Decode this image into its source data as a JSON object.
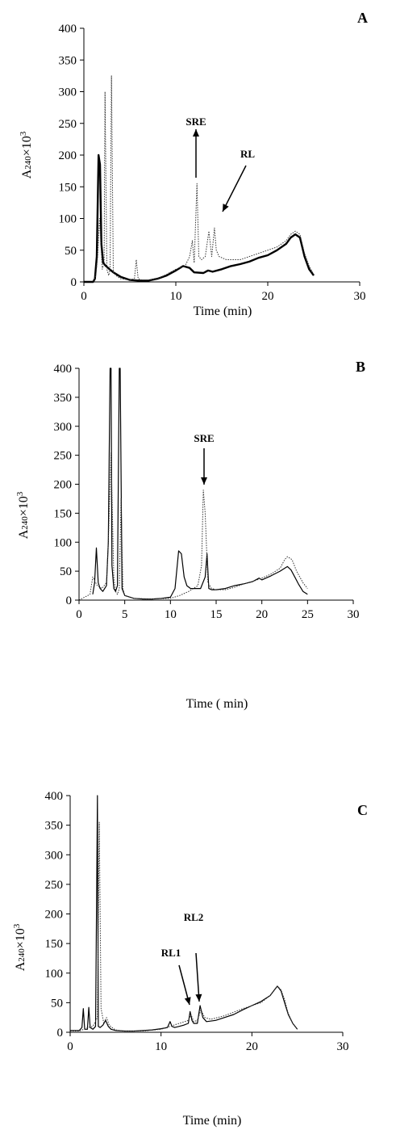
{
  "chart_data": [
    {
      "type": "line",
      "panel_label": "A",
      "xlabel": "Time (min)",
      "ylabel_main": "A",
      "ylabel_sub": "240",
      "ylabel_mid": "×10",
      "ylabel_sup": "3",
      "xlim": [
        0,
        30
      ],
      "ylim": [
        0,
        400
      ],
      "xticks": [
        0,
        10,
        20,
        30
      ],
      "yticks": [
        0,
        50,
        100,
        150,
        200,
        250,
        300,
        350,
        400
      ],
      "grid": false,
      "legend": "none",
      "annotations": [
        {
          "text": "SRE",
          "x": 12.3,
          "y": 160
        },
        {
          "text": "RL",
          "x": 14.5,
          "y": 90
        }
      ],
      "series": [
        {
          "style": "solid-thick",
          "x": [
            0,
            1.0,
            1.2,
            1.4,
            1.6,
            1.75,
            1.9,
            2.1,
            2.4,
            2.8,
            3.2,
            4,
            5,
            6,
            7,
            8,
            9,
            10,
            10.8,
            11.5,
            12,
            13,
            13.5,
            14,
            15,
            16,
            17,
            18,
            19,
            20,
            21,
            22,
            22.5,
            23,
            23.5,
            24,
            24.5,
            25
          ],
          "y": [
            0,
            0,
            5,
            40,
            200,
            185,
            60,
            30,
            25,
            20,
            15,
            8,
            3,
            2,
            2,
            5,
            10,
            18,
            25,
            22,
            15,
            14,
            18,
            16,
            20,
            25,
            28,
            32,
            38,
            42,
            50,
            60,
            70,
            75,
            70,
            40,
            20,
            10
          ]
        },
        {
          "style": "dotted",
          "x": [
            0,
            1.0,
            1.3,
            1.5,
            1.7,
            2.0,
            2.2,
            2.3,
            2.5,
            2.7,
            2.85,
            3.0,
            3.2,
            3.5,
            4,
            5,
            5.5,
            5.7,
            5.9,
            6.3,
            7,
            8,
            9,
            10,
            11,
            11.5,
            11.8,
            12.0,
            12.3,
            12.5,
            12.8,
            13.2,
            13.6,
            13.9,
            14.2,
            14.4,
            14.7,
            15.5,
            17,
            18,
            19,
            20,
            21,
            22,
            22.5,
            23,
            23.5,
            24,
            24.5,
            25
          ],
          "y": [
            0,
            0,
            10,
            40,
            100,
            20,
            30,
            300,
            20,
            10,
            20,
            325,
            15,
            10,
            5,
            3,
            5,
            35,
            5,
            3,
            3,
            5,
            12,
            20,
            25,
            40,
            65,
            30,
            155,
            40,
            35,
            40,
            80,
            40,
            85,
            50,
            40,
            35,
            35,
            40,
            45,
            50,
            55,
            65,
            75,
            80,
            75,
            45,
            25,
            12
          ]
        }
      ]
    },
    {
      "type": "line",
      "panel_label": "B",
      "xlabel": "Time ( min)",
      "ylabel_main": "A",
      "ylabel_sub": "240",
      "ylabel_mid": "×10",
      "ylabel_sup": "3",
      "xlim": [
        0,
        30
      ],
      "ylim": [
        0,
        400
      ],
      "xticks": [
        0,
        5,
        10,
        15,
        20,
        25,
        30
      ],
      "yticks": [
        0,
        50,
        100,
        150,
        200,
        250,
        300,
        350,
        400
      ],
      "grid": false,
      "legend": "none",
      "annotations": [
        {
          "text": "SRE",
          "x": 13.7,
          "y": 200
        }
      ],
      "series": [
        {
          "style": "solid",
          "x": [
            1.5,
            1.7,
            1.9,
            2.1,
            2.3,
            2.6,
            3.0,
            3.2,
            3.4,
            3.5,
            3.6,
            3.8,
            4.0,
            4.2,
            4.4,
            4.5,
            4.7,
            5,
            6,
            7,
            8,
            9,
            10,
            10.5,
            10.9,
            11.2,
            11.5,
            11.8,
            12.2,
            12.8,
            13.3,
            13.8,
            14.0,
            14.2,
            14.5,
            15,
            16,
            17,
            18,
            19,
            19.7,
            20,
            21,
            22,
            22.5,
            22.8,
            23.2,
            23.6,
            24,
            24.5,
            25
          ],
          "y": [
            10,
            30,
            90,
            30,
            20,
            15,
            25,
            100,
            400,
            400,
            60,
            20,
            15,
            25,
            400,
            400,
            20,
            8,
            3,
            2,
            2,
            3,
            5,
            20,
            85,
            80,
            40,
            25,
            20,
            20,
            20,
            40,
            80,
            20,
            18,
            18,
            20,
            25,
            28,
            32,
            38,
            35,
            42,
            50,
            55,
            58,
            52,
            40,
            28,
            15,
            10
          ]
        },
        {
          "style": "dotted",
          "x": [
            0,
            1.2,
            1.5,
            2.0,
            2.5,
            3.0,
            3.2,
            3.5,
            3.8,
            4.0,
            4.2,
            4.4,
            4.6,
            4.8,
            5,
            6,
            8,
            10,
            11,
            12,
            13,
            13.4,
            13.6,
            13.8,
            14.1,
            14.5,
            15,
            16,
            17,
            18,
            19,
            20,
            21,
            22,
            22.5,
            22.8,
            23.3,
            23.8,
            24.5,
            25
          ],
          "y": [
            0,
            10,
            40,
            25,
            20,
            30,
            100,
            255,
            40,
            15,
            10,
            20,
            175,
            20,
            8,
            3,
            2,
            3,
            8,
            15,
            25,
            60,
            190,
            150,
            30,
            20,
            18,
            18,
            22,
            28,
            32,
            38,
            45,
            55,
            70,
            75,
            70,
            50,
            30,
            20
          ]
        }
      ]
    },
    {
      "type": "line",
      "panel_label": "C",
      "xlabel": "Time (min)",
      "ylabel_main": "A",
      "ylabel_sub": "240",
      "ylabel_mid": "×10",
      "ylabel_sup": "3",
      "xlim": [
        0,
        30
      ],
      "ylim": [
        0,
        400
      ],
      "xticks": [
        0,
        10,
        20,
        30
      ],
      "yticks": [
        0,
        50,
        100,
        150,
        200,
        250,
        300,
        350,
        400
      ],
      "grid": false,
      "legend": "none",
      "annotations": [
        {
          "text": "RL1",
          "x": 13.1,
          "y": 80
        },
        {
          "text": "RL2",
          "x": 14.1,
          "y": 130
        }
      ],
      "series": [
        {
          "style": "solid",
          "x": [
            0,
            1.0,
            1.3,
            1.45,
            1.6,
            1.9,
            2.05,
            2.2,
            2.5,
            2.8,
            3.0,
            3.1,
            3.3,
            3.6,
            3.9,
            4.2,
            4.5,
            5,
            6,
            7,
            8,
            9,
            10,
            10.7,
            11.0,
            11.2,
            11.5,
            12,
            12.5,
            13.0,
            13.2,
            13.4,
            13.6,
            14.0,
            14.3,
            14.6,
            15,
            16,
            17,
            18,
            19,
            20,
            21,
            22,
            22.5,
            22.8,
            23.2,
            23.6,
            24,
            24.5,
            25
          ],
          "y": [
            3,
            3,
            8,
            40,
            5,
            5,
            42,
            8,
            5,
            10,
            410,
            10,
            8,
            12,
            20,
            10,
            5,
            3,
            2,
            2,
            3,
            4,
            6,
            8,
            18,
            10,
            8,
            10,
            12,
            15,
            35,
            20,
            15,
            15,
            45,
            25,
            18,
            20,
            25,
            30,
            38,
            45,
            52,
            62,
            72,
            78,
            70,
            50,
            30,
            15,
            5
          ]
        },
        {
          "style": "dotted",
          "x": [
            0,
            1.0,
            1.5,
            2.0,
            2.5,
            3.0,
            3.2,
            3.4,
            3.7,
            4.0,
            4.3,
            4.6,
            5,
            6,
            8,
            10,
            11,
            12,
            13,
            13.3,
            13.6,
            14.0,
            14.4,
            14.8,
            15.5,
            17,
            19,
            21,
            22,
            22.5,
            22.8,
            23.2,
            23.6,
            24,
            24.5,
            25
          ],
          "y": [
            2,
            2,
            5,
            8,
            10,
            25,
            355,
            40,
            15,
            25,
            12,
            8,
            4,
            2,
            2,
            5,
            10,
            15,
            20,
            30,
            18,
            20,
            38,
            25,
            22,
            28,
            40,
            50,
            62,
            72,
            78,
            72,
            55,
            32,
            15,
            5
          ]
        }
      ]
    }
  ]
}
